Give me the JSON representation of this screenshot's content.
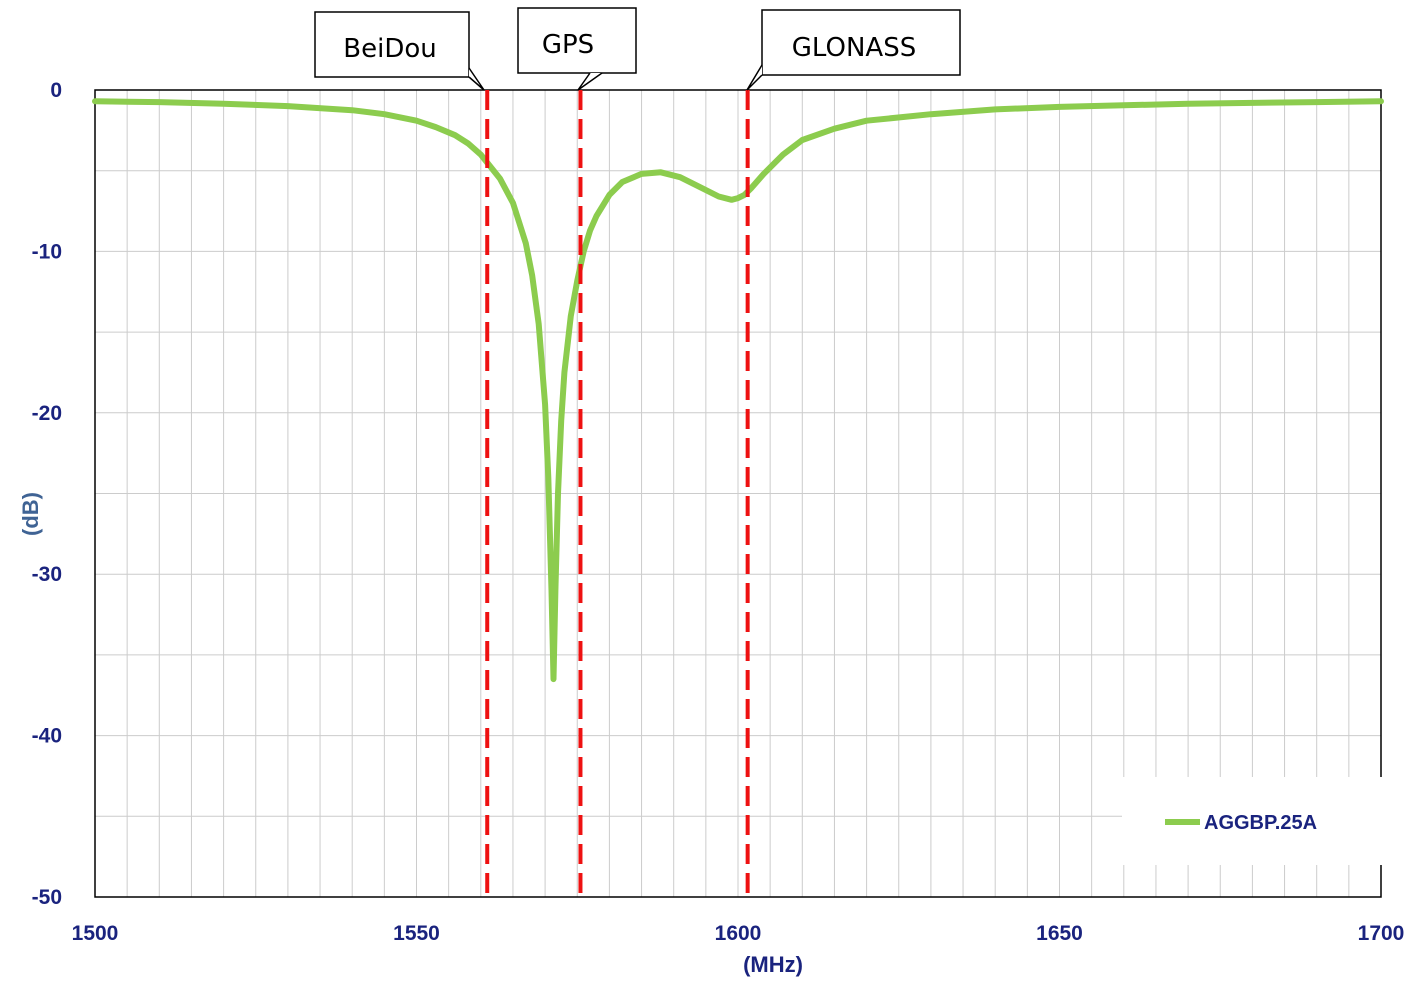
{
  "chart_data": {
    "type": "line",
    "xlabel": "(MHz)",
    "ylabel": "(dB)",
    "xlim": [
      1500,
      1700
    ],
    "ylim": [
      -50,
      0
    ],
    "x_ticks": [
      "1500",
      "1550",
      "1600",
      "1650",
      "1700"
    ],
    "y_ticks": [
      "0",
      "-10",
      "-20",
      "-30",
      "-40",
      "-50"
    ],
    "grid": true,
    "legend_position": "bottom-right",
    "colors": {
      "series": "#8ccc4e",
      "markers": "#ee1111",
      "tick_text": "#1a237e",
      "ylabel_text": "#3f6394"
    },
    "series": [
      {
        "name": "AGGBP.25A",
        "x": [
          1500,
          1510,
          1520,
          1530,
          1540,
          1545,
          1550,
          1553,
          1556,
          1558,
          1560,
          1561,
          1563,
          1565,
          1567,
          1568,
          1569,
          1570,
          1570.5,
          1571,
          1571.3,
          1571.6,
          1572,
          1572.5,
          1573,
          1574,
          1575,
          1576,
          1577,
          1578,
          1580,
          1582,
          1585,
          1588,
          1591,
          1594,
          1597,
          1599,
          1600,
          1601,
          1602,
          1604,
          1607,
          1610,
          1615,
          1620,
          1630,
          1640,
          1650,
          1660,
          1670,
          1680,
          1690,
          1700
        ],
        "y": [
          -0.7,
          -0.75,
          -0.85,
          -1.0,
          -1.25,
          -1.5,
          -1.9,
          -2.3,
          -2.8,
          -3.3,
          -4.0,
          -4.5,
          -5.5,
          -7.0,
          -9.5,
          -11.5,
          -14.5,
          -19.5,
          -24.0,
          -31.0,
          -36.5,
          -31.0,
          -25.0,
          -20.5,
          -17.5,
          -14.0,
          -11.8,
          -10.0,
          -8.7,
          -7.8,
          -6.5,
          -5.7,
          -5.2,
          -5.1,
          -5.4,
          -6.0,
          -6.6,
          -6.8,
          -6.7,
          -6.5,
          -6.1,
          -5.2,
          -4.0,
          -3.1,
          -2.4,
          -1.9,
          -1.5,
          -1.2,
          -1.05,
          -0.95,
          -0.85,
          -0.8,
          -0.75,
          -0.7
        ]
      }
    ],
    "markers": [
      {
        "label": "BeiDou",
        "x": 1561
      },
      {
        "label": "GPS",
        "x": 1575.5
      },
      {
        "label": "GLONASS",
        "x": 1601.5
      }
    ]
  }
}
